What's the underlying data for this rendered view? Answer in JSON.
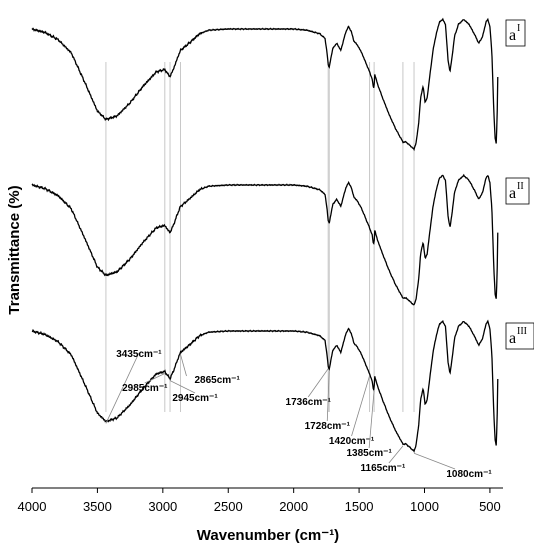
{
  "chart_data": {
    "type": "line",
    "xlabel": "Wavenumber (cm⁻¹)",
    "ylabel": "Transmittance (%)",
    "xlim": [
      4000,
      400
    ],
    "x_reversed": true,
    "x_ticks": [
      4000,
      3500,
      3000,
      2500,
      2000,
      1500,
      1000,
      500
    ],
    "y_ticks_shown": false,
    "grid": false,
    "series": [
      {
        "name": "a",
        "sup": "I"
      },
      {
        "name": "a",
        "sup": "II"
      },
      {
        "name": "a",
        "sup": "III"
      }
    ],
    "reference_lines": [
      3435,
      2985,
      2945,
      2865,
      1736,
      1728,
      1420,
      1385,
      1165,
      1080
    ],
    "annotations": [
      {
        "text": "3435cm⁻¹",
        "x": 3435
      },
      {
        "text": "2985cm⁻¹",
        "x": 2985
      },
      {
        "text": "2945cm⁻¹",
        "x": 2945
      },
      {
        "text": "2865cm⁻¹",
        "x": 2865
      },
      {
        "text": "1736cm⁻¹",
        "x": 1736
      },
      {
        "text": "1728cm⁻¹",
        "x": 1728
      },
      {
        "text": "1420cm⁻¹",
        "x": 1420
      },
      {
        "text": "1385cm⁻¹",
        "x": 1385
      },
      {
        "text": "1165cm⁻¹",
        "x": 1165
      },
      {
        "text": "1080cm⁻¹",
        "x": 1080
      }
    ]
  }
}
